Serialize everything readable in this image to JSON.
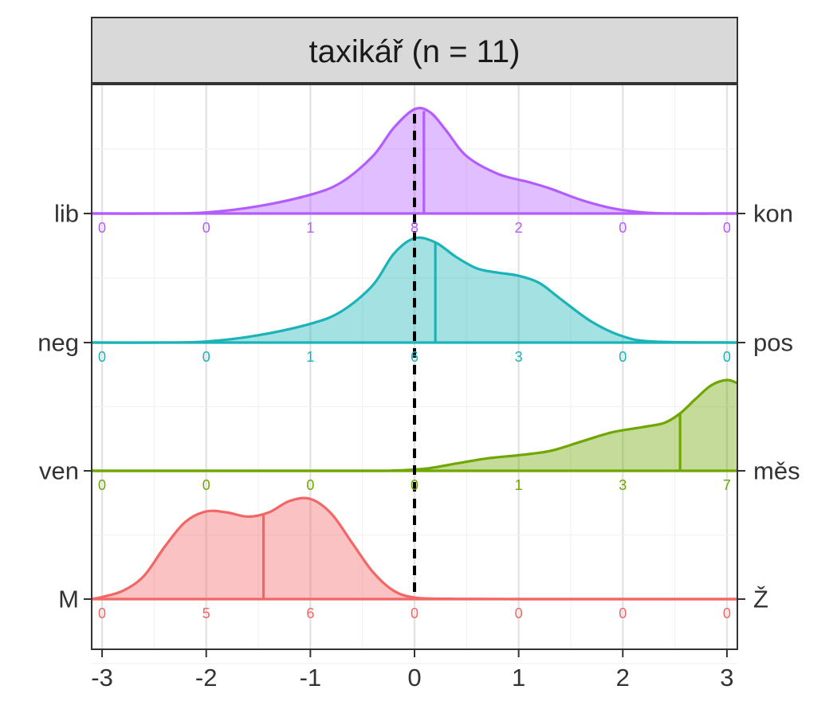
{
  "chart_data": {
    "type": "ridgeline",
    "title": "taxikář (n = 11)",
    "xlabel": "",
    "ylabel": "",
    "xlim": [
      -3.1,
      3.1
    ],
    "x_ticks": [
      "-3",
      "-2",
      "-1",
      "0",
      "1",
      "2",
      "3"
    ],
    "x_tick_values": [
      -3,
      -2,
      -1,
      0,
      1,
      2,
      3
    ],
    "reference_line": {
      "x": 0,
      "style": "dashed",
      "color": "#000000"
    },
    "grid": true,
    "count_positions": [
      -3,
      -2,
      -1,
      0,
      1,
      2,
      3
    ],
    "series": [
      {
        "left_label": "lib",
        "right_label": "kon",
        "color": "#B35CFF",
        "mean": 0.09,
        "counts": [
          "0",
          "0",
          "1",
          "8",
          "2",
          "0",
          "0"
        ],
        "density": [
          [
            -3.1,
            0
          ],
          [
            -2.5,
            0
          ],
          [
            -2.0,
            0.01
          ],
          [
            -1.5,
            0.07
          ],
          [
            -1.0,
            0.18
          ],
          [
            -0.7,
            0.3
          ],
          [
            -0.4,
            0.55
          ],
          [
            -0.2,
            0.82
          ],
          [
            0.0,
            1.0
          ],
          [
            0.15,
            0.97
          ],
          [
            0.3,
            0.8
          ],
          [
            0.5,
            0.55
          ],
          [
            0.8,
            0.38
          ],
          [
            1.1,
            0.3
          ],
          [
            1.3,
            0.24
          ],
          [
            1.6,
            0.13
          ],
          [
            1.9,
            0.05
          ],
          [
            2.2,
            0.01
          ],
          [
            2.5,
            0
          ],
          [
            3.1,
            0
          ]
        ]
      },
      {
        "left_label": "neg",
        "right_label": "pos",
        "color": "#1AB3B8",
        "mean": 0.2,
        "counts": [
          "0",
          "0",
          "1",
          "6",
          "3",
          "0",
          "0"
        ],
        "density": [
          [
            -3.1,
            0
          ],
          [
            -2.5,
            0
          ],
          [
            -2.0,
            0.01
          ],
          [
            -1.5,
            0.07
          ],
          [
            -1.0,
            0.18
          ],
          [
            -0.7,
            0.3
          ],
          [
            -0.4,
            0.55
          ],
          [
            -0.2,
            0.85
          ],
          [
            0.0,
            1.0
          ],
          [
            0.2,
            0.96
          ],
          [
            0.4,
            0.82
          ],
          [
            0.6,
            0.71
          ],
          [
            0.8,
            0.67
          ],
          [
            1.0,
            0.64
          ],
          [
            1.2,
            0.57
          ],
          [
            1.4,
            0.42
          ],
          [
            1.7,
            0.2
          ],
          [
            2.0,
            0.06
          ],
          [
            2.3,
            0.01
          ],
          [
            3.1,
            0
          ]
        ]
      },
      {
        "left_label": "ven",
        "right_label": "měs",
        "color": "#6FA600",
        "mean": 2.55,
        "counts": [
          "0",
          "0",
          "0",
          "0",
          "1",
          "3",
          "7"
        ],
        "density": [
          [
            -3.1,
            0
          ],
          [
            -0.5,
            0
          ],
          [
            -0.2,
            0.003
          ],
          [
            0.1,
            0.02
          ],
          [
            0.4,
            0.07
          ],
          [
            0.7,
            0.12
          ],
          [
            1.0,
            0.15
          ],
          [
            1.3,
            0.19
          ],
          [
            1.6,
            0.28
          ],
          [
            1.9,
            0.37
          ],
          [
            2.2,
            0.42
          ],
          [
            2.4,
            0.46
          ],
          [
            2.55,
            0.55
          ],
          [
            2.7,
            0.69
          ],
          [
            2.85,
            0.82
          ],
          [
            3.0,
            0.87
          ],
          [
            3.1,
            0.84
          ]
        ]
      },
      {
        "left_label": "M",
        "right_label": "Ž",
        "color": "#F26666",
        "mean": -1.45,
        "counts": [
          "0",
          "5",
          "6",
          "0",
          "0",
          "0",
          "0"
        ],
        "density": [
          [
            -3.1,
            0
          ],
          [
            -3.0,
            0.02
          ],
          [
            -2.8,
            0.08
          ],
          [
            -2.6,
            0.22
          ],
          [
            -2.4,
            0.5
          ],
          [
            -2.2,
            0.74
          ],
          [
            -2.0,
            0.84
          ],
          [
            -1.8,
            0.83
          ],
          [
            -1.6,
            0.79
          ],
          [
            -1.4,
            0.83
          ],
          [
            -1.2,
            0.94
          ],
          [
            -1.0,
            0.96
          ],
          [
            -0.8,
            0.82
          ],
          [
            -0.6,
            0.54
          ],
          [
            -0.4,
            0.26
          ],
          [
            -0.2,
            0.08
          ],
          [
            0.0,
            0.015
          ],
          [
            0.3,
            0.003
          ],
          [
            1.0,
            0
          ],
          [
            3.1,
            0
          ]
        ]
      }
    ]
  }
}
